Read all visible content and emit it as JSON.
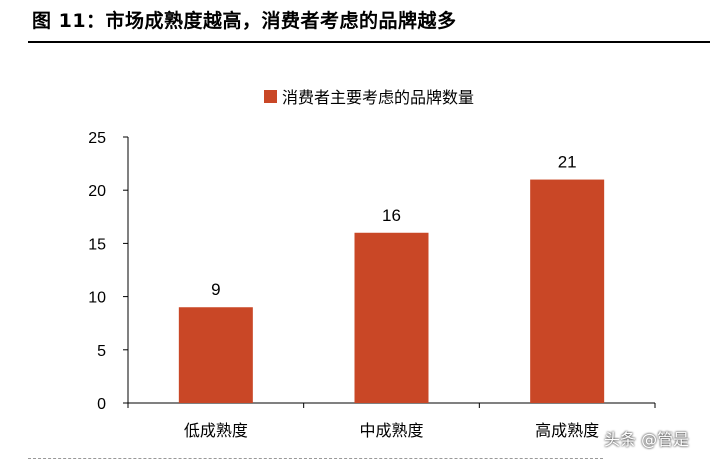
{
  "figure": {
    "title": "图 11：市场成熟度越高，消费者考虑的品牌越多"
  },
  "watermark": "头条 @管是",
  "colors": {
    "bar": "#c94726",
    "axis": "#000000"
  },
  "chart_data": {
    "type": "bar",
    "categories": [
      "低成熟度",
      "中成熟度",
      "高成熟度"
    ],
    "series": [
      {
        "name": "消费者主要考虑的品牌数量",
        "values": [
          9,
          16,
          21
        ]
      }
    ],
    "data_labels": [
      "9",
      "16",
      "21"
    ],
    "title": "",
    "xlabel": "",
    "ylabel": "",
    "ylim": [
      0,
      25
    ],
    "yticks": [
      0,
      5,
      10,
      15,
      20,
      25
    ],
    "grid": false,
    "legend": "top-center"
  }
}
